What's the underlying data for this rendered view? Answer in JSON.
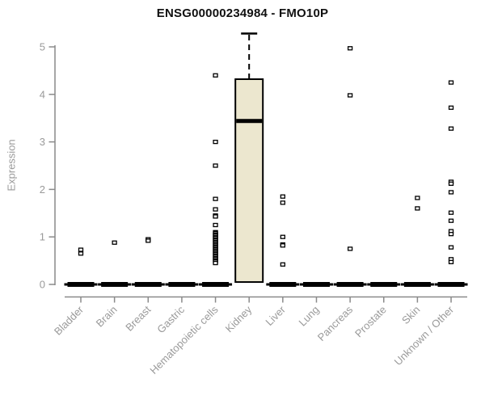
{
  "chart_data": {
    "type": "boxplot",
    "title": "ENSG00000234984 - FMO10P",
    "ylabel": "Expression",
    "xlabel": "",
    "ylim": [
      0,
      5
    ],
    "yticks": [
      0,
      1,
      2,
      3,
      4,
      5
    ],
    "grid": false,
    "legend": "none",
    "categories": [
      "Bladder",
      "Brain",
      "Breast",
      "Gastric",
      "Hematopoietic cells",
      "Kidney",
      "Liver",
      "Lung",
      "Pancreas",
      "Prostate",
      "Skin",
      "Unknown / Other"
    ],
    "boxes": [
      {
        "category": "Bladder",
        "q1": 0,
        "median": 0,
        "q3": 0,
        "whisker_low": 0,
        "whisker_high": 0,
        "outliers": [
          0.73,
          0.65
        ]
      },
      {
        "category": "Brain",
        "q1": 0,
        "median": 0,
        "q3": 0,
        "whisker_low": 0,
        "whisker_high": 0,
        "outliers": [
          0.88
        ]
      },
      {
        "category": "Breast",
        "q1": 0,
        "median": 0,
        "q3": 0,
        "whisker_low": 0,
        "whisker_high": 0,
        "outliers": [
          0.95,
          0.92
        ]
      },
      {
        "category": "Gastric",
        "q1": 0,
        "median": 0,
        "q3": 0,
        "whisker_low": 0,
        "whisker_high": 0,
        "outliers": []
      },
      {
        "category": "Hematopoietic cells",
        "q1": 0,
        "median": 0,
        "q3": 0,
        "whisker_low": 0,
        "whisker_high": 0,
        "outliers": [
          4.4,
          3.0,
          2.5,
          1.8,
          1.58,
          1.45,
          1.43,
          1.25,
          1.1,
          1.08,
          1.05,
          1.03,
          1.0,
          0.98,
          0.95,
          0.93,
          0.9,
          0.88,
          0.85,
          0.83,
          0.8,
          0.78,
          0.75,
          0.73,
          0.7,
          0.68,
          0.65,
          0.63,
          0.6,
          0.58,
          0.55,
          0.53,
          0.5,
          0.48,
          0.45
        ]
      },
      {
        "category": "Kidney",
        "q1": 0.05,
        "median": 3.44,
        "q3": 4.32,
        "whisker_low": 0.05,
        "whisker_high": 5.28,
        "outliers": []
      },
      {
        "category": "Liver",
        "q1": 0,
        "median": 0,
        "q3": 0,
        "whisker_low": 0,
        "whisker_high": 0,
        "outliers": [
          1.85,
          1.72,
          1.0,
          0.84,
          0.82,
          0.42
        ]
      },
      {
        "category": "Lung",
        "q1": 0,
        "median": 0,
        "q3": 0,
        "whisker_low": 0,
        "whisker_high": 0,
        "outliers": []
      },
      {
        "category": "Pancreas",
        "q1": 0,
        "median": 0,
        "q3": 0,
        "whisker_low": 0,
        "whisker_high": 0,
        "outliers": [
          4.97,
          3.98,
          0.75
        ]
      },
      {
        "category": "Prostate",
        "q1": 0,
        "median": 0,
        "q3": 0,
        "whisker_low": 0,
        "whisker_high": 0,
        "outliers": []
      },
      {
        "category": "Skin",
        "q1": 0,
        "median": 0,
        "q3": 0,
        "whisker_low": 0,
        "whisker_high": 0,
        "outliers": [
          1.82,
          1.6
        ]
      },
      {
        "category": "Unknown / Other",
        "q1": 0,
        "median": 0,
        "q3": 0,
        "whisker_low": 0,
        "whisker_high": 0,
        "outliers": [
          4.25,
          3.72,
          3.28,
          2.16,
          2.12,
          1.94,
          1.51,
          1.34,
          1.12,
          1.06,
          0.78,
          0.53,
          0.47
        ]
      }
    ],
    "colors": {
      "box_fill": "#ece7cf",
      "box_border": "#000000",
      "median": "#000000",
      "axis": "#8a8a8a",
      "tick_label": "#9a9a9a",
      "title": "#111111",
      "background": "#ffffff",
      "outlier_fill": "#ffffff",
      "outlier_border": "#000000"
    }
  }
}
